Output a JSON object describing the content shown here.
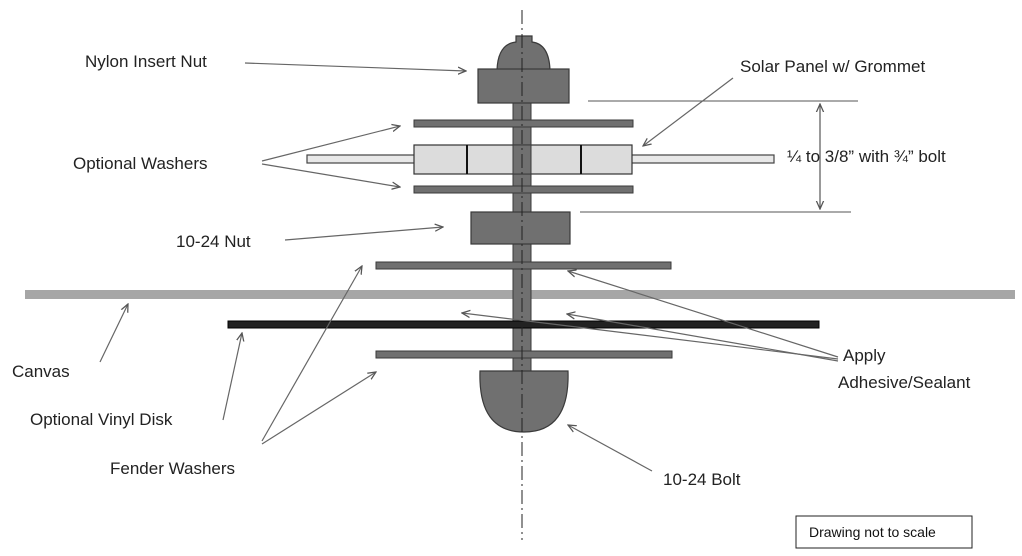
{
  "labels": {
    "nylon_insert_nut": "Nylon Insert Nut",
    "solar_panel": "Solar Panel w/ Grommet",
    "optional_washers": "Optional  Washers",
    "thickness": "¼ to 3/8” with ¾” bolt",
    "nut_10_24": "10-24 Nut",
    "canvas": "Canvas",
    "optional_vinyl_disk": "Optional  Vinyl Disk",
    "fender_washers": "Fender Washers",
    "bolt_10_24": "10-24 Bolt",
    "apply_line1": "Apply",
    "apply_line2": "Adhesive/Sealant"
  },
  "note": "Drawing not to scale",
  "colors": {
    "part_fill": "#707070",
    "part_stroke": "#3a3a3a",
    "canvas": "#a6a6a6",
    "panel_fill": "#dcdcdc",
    "vinyl_disk": "#222222",
    "leader": "#666666",
    "text": "#222222"
  }
}
